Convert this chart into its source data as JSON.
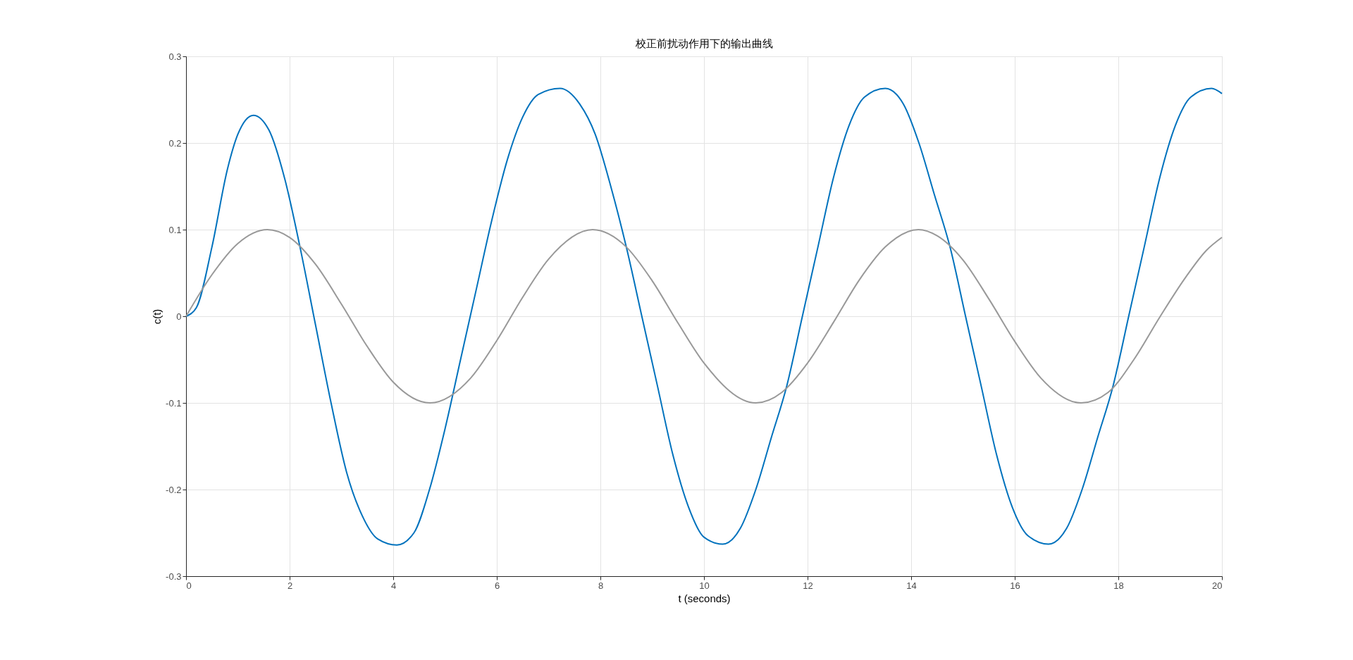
{
  "chart_data": {
    "type": "line",
    "title": "校正前扰动作用下的输出曲线",
    "xlabel": "t (seconds)",
    "ylabel": "c(t)",
    "xlim": [
      0,
      20
    ],
    "xticks": [
      0,
      2,
      4,
      6,
      8,
      10,
      12,
      14,
      16,
      18,
      20
    ],
    "ylim": [
      -0.3,
      0.3
    ],
    "yticks": [
      -0.3,
      -0.2,
      -0.1,
      0,
      0.1,
      0.2,
      0.3
    ],
    "grid": true,
    "legend": false,
    "marker": "none",
    "line_style": "solid",
    "series": [
      {
        "color": "#0072bd",
        "x": [
          0,
          0.2,
          0.5,
          0.8,
          1.0,
          1.3,
          1.6,
          1.9,
          2.2,
          2.5,
          2.8,
          3.1,
          3.4,
          3.7,
          4.07,
          4.4,
          4.7,
          5.0,
          5.3,
          5.6,
          5.9,
          6.2,
          6.5,
          6.8,
          7.22,
          7.6,
          7.9,
          8.2,
          8.5,
          8.8,
          9.1,
          9.4,
          9.7,
          10.0,
          10.36,
          10.7,
          11.0,
          11.3,
          11.6,
          11.9,
          12.2,
          12.5,
          12.8,
          13.1,
          13.5,
          13.85,
          14.15,
          14.45,
          14.75,
          15.05,
          15.35,
          15.65,
          15.95,
          16.25,
          16.65,
          17.0,
          17.3,
          17.6,
          17.9,
          18.2,
          18.5,
          18.8,
          19.1,
          19.4,
          19.8,
          20
        ],
        "values": [
          0,
          0.01,
          0.08,
          0.17,
          0.21,
          0.232,
          0.215,
          0.16,
          0.08,
          -0.01,
          -0.1,
          -0.18,
          -0.23,
          -0.257,
          -0.264,
          -0.25,
          -0.2,
          -0.13,
          -0.05,
          0.03,
          0.11,
          0.18,
          0.23,
          0.256,
          0.263,
          0.245,
          0.21,
          0.15,
          0.08,
          0.0,
          -0.08,
          -0.16,
          -0.22,
          -0.255,
          -0.263,
          -0.245,
          -0.2,
          -0.14,
          -0.08,
          0.0,
          0.08,
          0.16,
          0.22,
          0.253,
          0.263,
          0.245,
          0.2,
          0.14,
          0.08,
          0.0,
          -0.08,
          -0.16,
          -0.22,
          -0.253,
          -0.263,
          -0.245,
          -0.2,
          -0.14,
          -0.08,
          0.0,
          0.08,
          0.16,
          0.22,
          0.253,
          0.263,
          0.257
        ]
      },
      {
        "color": "#999999",
        "x": [
          0,
          0.5,
          1,
          1.57,
          2,
          2.5,
          3,
          3.5,
          4,
          4.71,
          5.5,
          6,
          6.5,
          7,
          7.85,
          8.5,
          9,
          9.5,
          10,
          11,
          11.5,
          12,
          12.5,
          13,
          13.5,
          14.14,
          14.5,
          15,
          15.5,
          16,
          16.5,
          17.28,
          17.8,
          18.3,
          18.8,
          19.3,
          19.7,
          20
        ],
        "values": [
          0,
          0.048,
          0.084,
          0.1,
          0.091,
          0.06,
          0.014,
          -0.035,
          -0.076,
          -0.1,
          -0.071,
          -0.028,
          0.022,
          0.066,
          0.1,
          0.08,
          0.041,
          -0.008,
          -0.054,
          -0.1,
          -0.088,
          -0.054,
          -0.007,
          0.042,
          0.08,
          0.1,
          0.093,
          0.065,
          0.02,
          -0.029,
          -0.071,
          -0.1,
          -0.088,
          -0.05,
          -0.001,
          0.045,
          0.076,
          0.091
        ]
      }
    ]
  }
}
